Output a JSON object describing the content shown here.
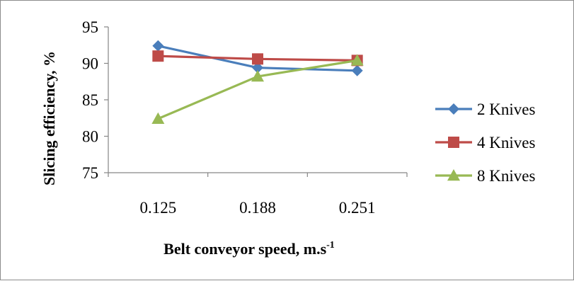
{
  "chart_data": {
    "type": "line",
    "categories": [
      "0.125",
      "0.188",
      "0.251"
    ],
    "series": [
      {
        "name": "2 Knives",
        "values": [
          92.4,
          89.4,
          89.0
        ],
        "color": "#4a7ebb",
        "marker": "diamond"
      },
      {
        "name": "4 Knives",
        "values": [
          91.0,
          90.6,
          90.4
        ],
        "color": "#be4b48",
        "marker": "square"
      },
      {
        "name": "8 Knives",
        "values": [
          82.4,
          88.2,
          90.4
        ],
        "color": "#98b954",
        "marker": "triangle"
      }
    ],
    "xlabel": "Belt conveyor speed, m.s",
    "xlabel_superscript": "-1",
    "ylabel": "Slicing efficiency, %",
    "ylim": [
      75,
      95
    ],
    "yticks": [
      "75",
      "80",
      "85",
      "90",
      "95"
    ],
    "grid": false,
    "legend_position": "right"
  }
}
